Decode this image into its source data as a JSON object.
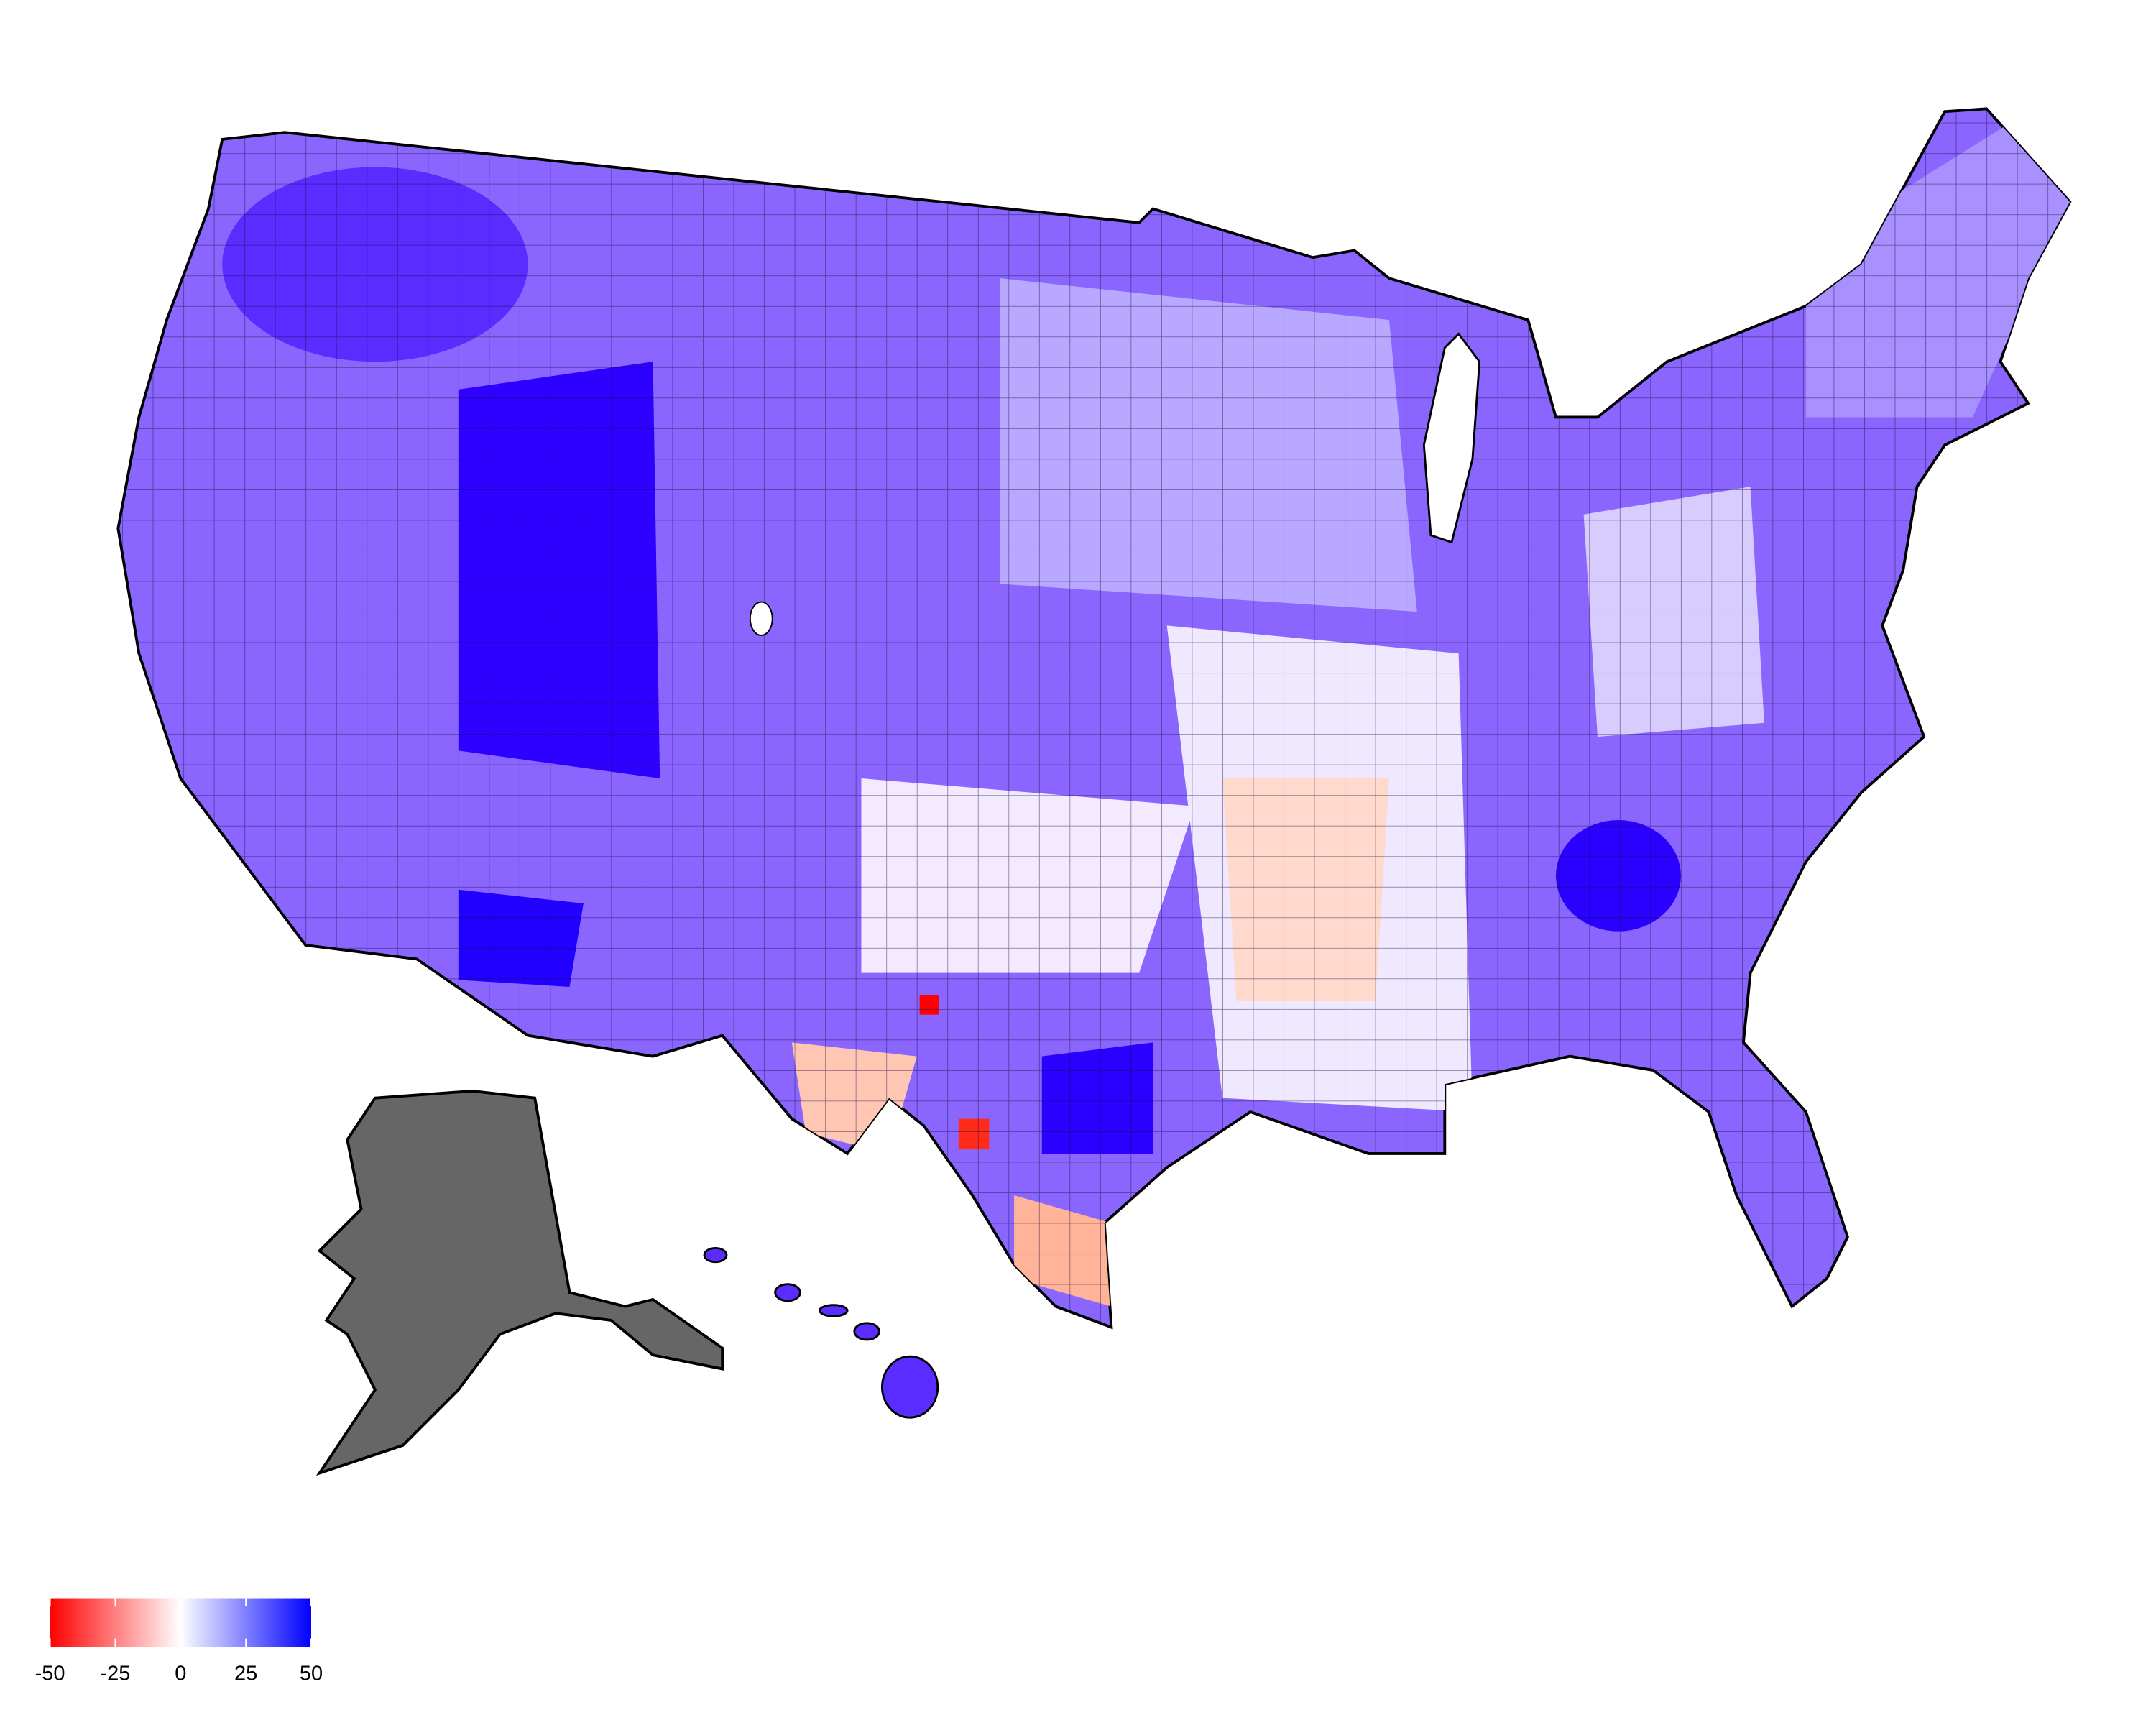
{
  "chart_data": {
    "type": "choropleth",
    "colorbar": {
      "lim": [
        -50,
        50
      ],
      "ticks": [
        -50,
        -25,
        0,
        25,
        50
      ],
      "colors": [
        "#ff0000",
        "#ffffff",
        "#0000ff"
      ]
    },
    "missing_color": "#666666"
  }
}
